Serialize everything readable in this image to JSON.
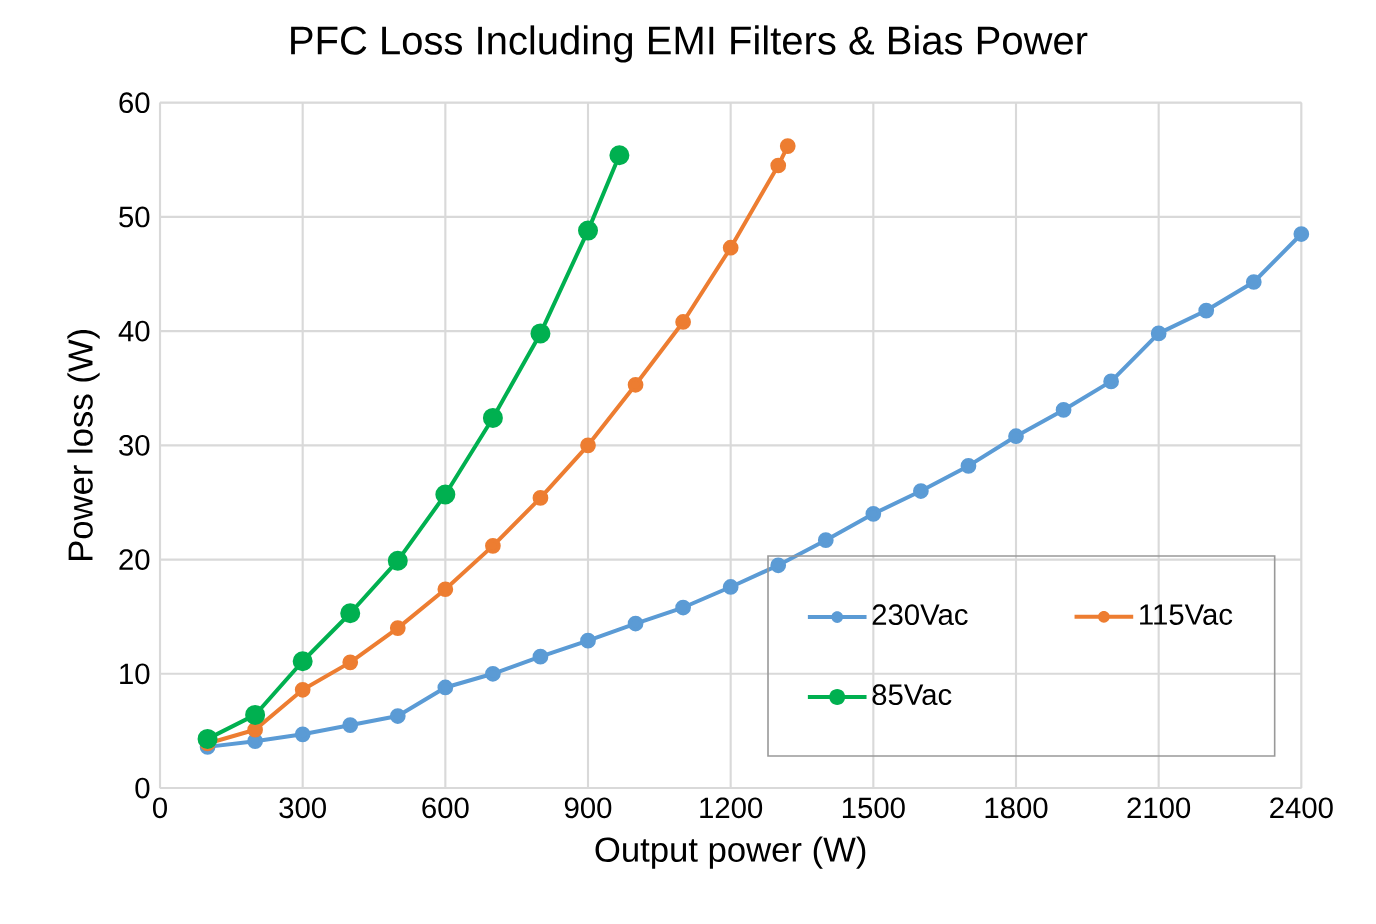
{
  "chart_data": {
    "type": "line",
    "title": "PFC Loss Including EMI Filters & Bias Power",
    "xlabel": "Output power (W)",
    "ylabel": "Power loss (W)",
    "xlim": [
      0,
      2400
    ],
    "xticks": [
      0,
      300,
      600,
      900,
      1200,
      1500,
      1800,
      2100,
      2400
    ],
    "ylim": [
      0,
      60
    ],
    "yticks": [
      0,
      10,
      20,
      30,
      40,
      50,
      60
    ],
    "grid": true,
    "legend": "bottom right",
    "marker": "circle",
    "line_style": "solid",
    "series": [
      {
        "name": "230Vac",
        "color": "#5b9bd5",
        "x": [
          100,
          200,
          300,
          400,
          500,
          600,
          700,
          800,
          900,
          1000,
          1100,
          1200,
          1300,
          1400,
          1500,
          1600,
          1700,
          1800,
          1900,
          2000,
          2100,
          2200,
          2300,
          2400
        ],
        "values": [
          3.6,
          4.1,
          4.7,
          5.5,
          6.3,
          8.8,
          10,
          11.5,
          12.9,
          14.4,
          15.8,
          17.6,
          19.5,
          21.7,
          24,
          26,
          28.2,
          30.8,
          33.1,
          35.6,
          39.8,
          41.8,
          44.3,
          48.5
        ]
      },
      {
        "name": "115Vac",
        "color": "#ed7d31",
        "x": [
          100,
          200,
          300,
          400,
          500,
          600,
          700,
          800,
          900,
          1000,
          1100,
          1200,
          1300,
          1320
        ],
        "values": [
          3.9,
          5.1,
          8.6,
          11,
          14,
          17.4,
          21.2,
          25.4,
          30,
          35.3,
          40.8,
          47.3,
          54.5,
          56.2
        ]
      },
      {
        "name": "85Vac",
        "color": "#00b050",
        "x": [
          100,
          200,
          300,
          400,
          500,
          600,
          700,
          800,
          900,
          966
        ],
        "values": [
          4.3,
          6.4,
          11.1,
          15.3,
          19.9,
          25.7,
          32.4,
          39.8,
          48.8,
          55.4
        ]
      }
    ]
  }
}
